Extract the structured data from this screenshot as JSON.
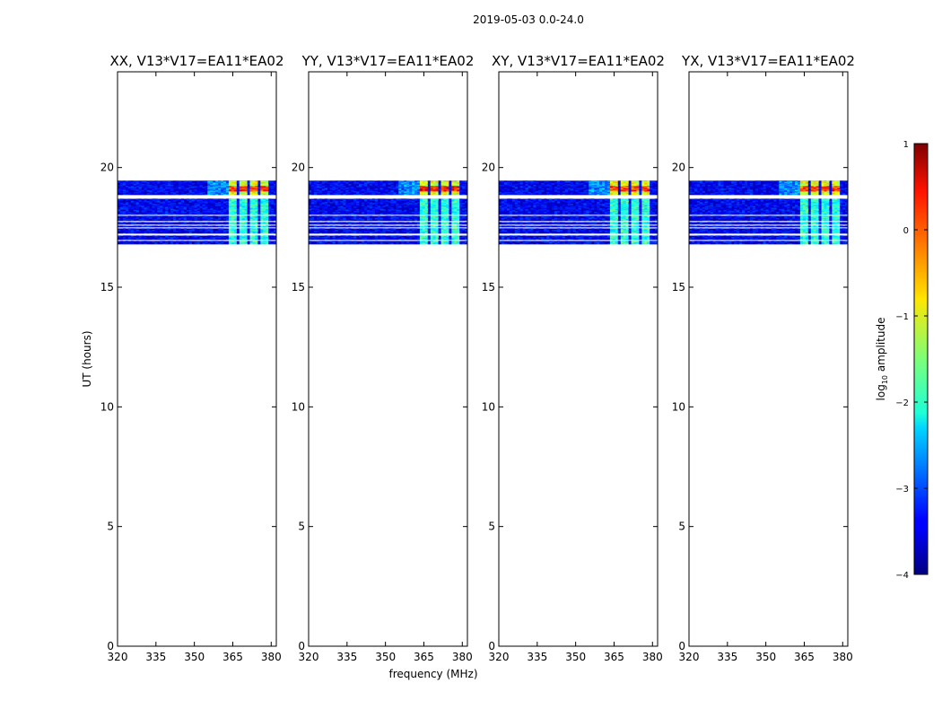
{
  "chart_data": {
    "type": "heatmap",
    "suptitle": "2019-05-03 0.0-24.0",
    "xlabel": "frequency (MHz)",
    "ylabel": "UT (hours)",
    "xlim": [
      320,
      382
    ],
    "ylim": [
      0,
      24
    ],
    "xticks": [
      320,
      335,
      350,
      365,
      380
    ],
    "yticks": [
      0,
      5,
      10,
      15,
      20
    ],
    "panels": [
      {
        "title": "XX, V13*V17=EA11*EA02",
        "ut_range": [
          16.75,
          19.45
        ],
        "rfi_freq_range": [
          363,
          380
        ],
        "rfi_peak_log10": 0.3
      },
      {
        "title": "YY, V13*V17=EA11*EA02",
        "ut_range": [
          16.75,
          19.45
        ],
        "rfi_freq_range": [
          363,
          380
        ],
        "rfi_peak_log10": 0.5
      },
      {
        "title": "XY, V13*V17=EA11*EA02",
        "ut_range": [
          16.75,
          19.45
        ],
        "rfi_freq_range": [
          363,
          380
        ],
        "rfi_peak_log10": 0.2
      },
      {
        "title": "YX, V13*V17=EA11*EA02",
        "ut_range": [
          16.75,
          19.45
        ],
        "rfi_freq_range": [
          363,
          380
        ],
        "rfi_peak_log10": 0.2
      }
    ],
    "colorbar": {
      "label_prefix": "log",
      "label_sub": "10",
      "label_suffix": " amplitude",
      "range": [
        -4,
        1
      ],
      "ticks": [
        -4,
        -3,
        -2,
        -1,
        0,
        1
      ],
      "tick_labels": [
        "−4",
        "−3",
        "−2",
        "−1",
        "0",
        "1"
      ],
      "colormap": "jet"
    }
  }
}
